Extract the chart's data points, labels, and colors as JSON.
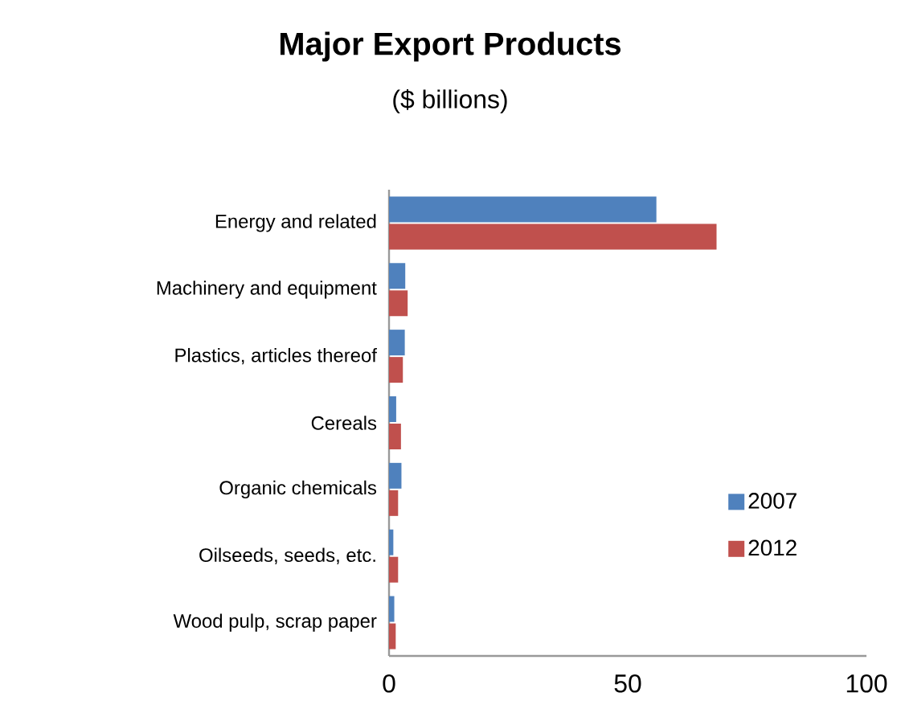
{
  "chart_data": {
    "type": "bar",
    "orientation": "horizontal",
    "title": "Major Export Products",
    "subtitle": "($ billions)",
    "categories": [
      "Energy and related",
      "Machinery and equipment",
      "Plastics, articles thereof",
      "Cereals",
      "Organic chemicals",
      "Oilseeds, seeds, etc.",
      "Wood pulp, scrap paper"
    ],
    "series": [
      {
        "name": "2007",
        "color": "#4f81bd",
        "values": [
          56,
          3.4,
          3.3,
          1.5,
          2.6,
          0.9,
          1.1
        ]
      },
      {
        "name": "2012",
        "color": "#c0504d",
        "values": [
          68.6,
          3.9,
          2.9,
          2.5,
          1.9,
          1.9,
          1.4
        ]
      }
    ],
    "xlim": [
      0,
      100
    ],
    "xticks": [
      0,
      50,
      100
    ],
    "grid": false,
    "legend": "right"
  }
}
